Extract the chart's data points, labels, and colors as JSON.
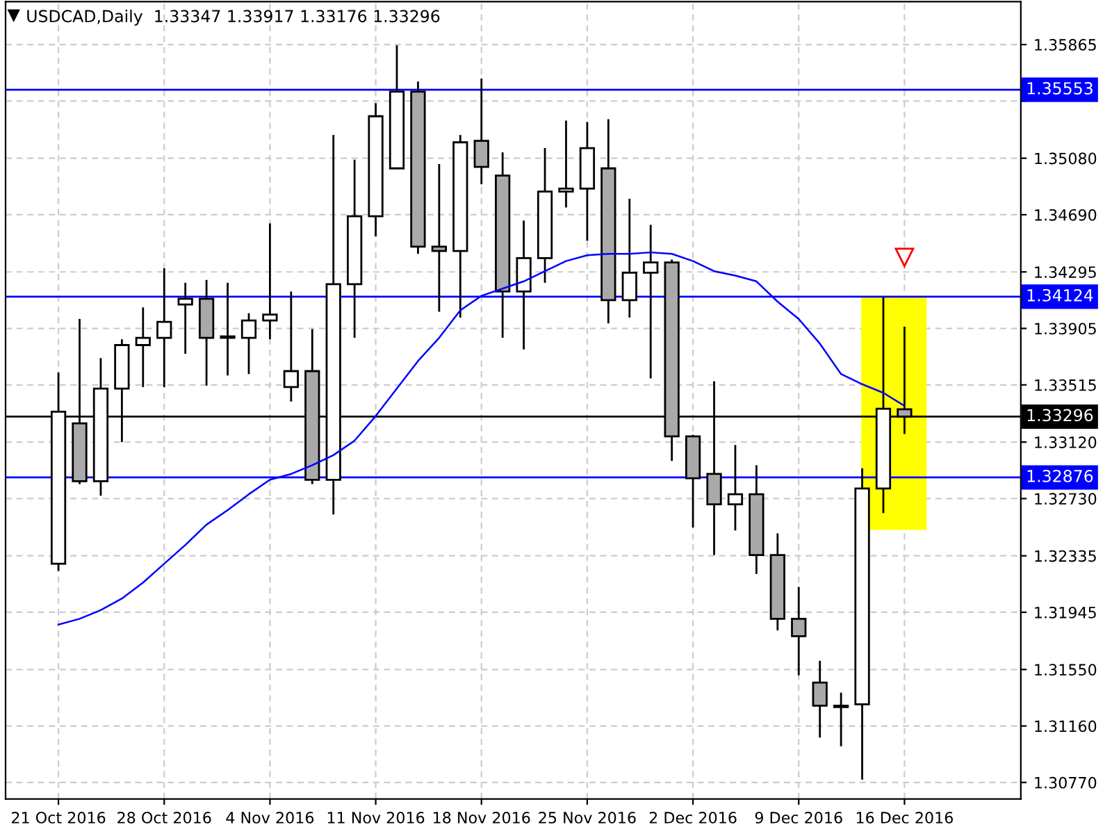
{
  "chart_data": {
    "type": "candlestick",
    "title": "USDCAD,Daily  1.33347 1.33917 1.33176 1.33296",
    "categories": [
      "21 Oct 2016",
      null,
      null,
      null,
      null,
      "28 Oct 2016",
      null,
      null,
      null,
      null,
      "4 Nov 2016",
      null,
      null,
      null,
      null,
      "11 Nov 2016",
      null,
      null,
      null,
      null,
      "18 Nov 2016",
      null,
      null,
      null,
      null,
      "25 Nov 2016",
      null,
      null,
      null,
      null,
      "2 Dec 2016",
      null,
      null,
      null,
      null,
      "9 Dec 2016",
      null,
      null,
      null,
      null,
      "16 Dec 2016",
      null,
      null,
      null,
      null,
      null
    ],
    "ohlc": [
      [
        1.3228,
        1.336,
        1.3223,
        1.3333
      ],
      [
        1.3325,
        1.3397,
        1.3283,
        1.3285
      ],
      [
        1.3285,
        1.337,
        1.3275,
        1.3349
      ],
      [
        1.3349,
        1.3383,
        1.3312,
        1.3379
      ],
      [
        1.3379,
        1.3405,
        1.335,
        1.3384
      ],
      [
        1.3384,
        1.3432,
        1.335,
        1.3395
      ],
      [
        1.3407,
        1.3422,
        1.3373,
        1.3411
      ],
      [
        1.3411,
        1.3424,
        1.3351,
        1.3384
      ],
      [
        1.3385,
        1.3422,
        1.3358,
        1.3384
      ],
      [
        1.3384,
        1.3401,
        1.3359,
        1.3396
      ],
      [
        1.3396,
        1.3463,
        1.3383,
        1.34
      ],
      [
        1.335,
        1.3416,
        1.334,
        1.3361
      ],
      [
        1.3361,
        1.339,
        1.3283,
        1.3286
      ],
      [
        1.3286,
        1.3524,
        1.3262,
        1.3421
      ],
      [
        1.3421,
        1.3507,
        1.3384,
        1.3468
      ],
      [
        1.3468,
        1.3546,
        1.3454,
        1.3537
      ],
      [
        1.3501,
        1.3586,
        1.3501,
        1.3554
      ],
      [
        1.3554,
        1.3561,
        1.3442,
        1.3447
      ],
      [
        1.3447,
        1.3504,
        1.3402,
        1.3444
      ],
      [
        1.3444,
        1.3524,
        1.3398,
        1.3519
      ],
      [
        1.352,
        1.3563,
        1.349,
        1.3502
      ],
      [
        1.3496,
        1.3512,
        1.3384,
        1.3416
      ],
      [
        1.3416,
        1.3465,
        1.3376,
        1.3439
      ],
      [
        1.3439,
        1.3515,
        1.3422,
        1.3485
      ],
      [
        1.3485,
        1.3534,
        1.3474,
        1.3487
      ],
      [
        1.3487,
        1.3533,
        1.3451,
        1.3515
      ],
      [
        1.3501,
        1.3535,
        1.3394,
        1.341
      ],
      [
        1.341,
        1.348,
        1.3398,
        1.3429
      ],
      [
        1.3429,
        1.3462,
        1.3356,
        1.3436
      ],
      [
        1.3436,
        1.3438,
        1.3299,
        1.3316
      ],
      [
        1.3316,
        1.3317,
        1.3253,
        1.3287
      ],
      [
        1.329,
        1.3354,
        1.3234,
        1.3269
      ],
      [
        1.3269,
        1.331,
        1.3251,
        1.3276
      ],
      [
        1.3276,
        1.3296,
        1.3221,
        1.3234
      ],
      [
        1.3234,
        1.3249,
        1.3182,
        1.319
      ],
      [
        1.319,
        1.3212,
        1.3151,
        1.3178
      ],
      [
        1.3146,
        1.3161,
        1.3108,
        1.313
      ],
      [
        1.313,
        1.3139,
        1.3102,
        1.3129
      ],
      [
        1.3131,
        1.3294,
        1.3079,
        1.328
      ],
      [
        1.328,
        1.3412,
        1.3263,
        1.3335
      ],
      [
        1.33347,
        1.33917,
        1.33176,
        1.33296
      ],
      null,
      null,
      null,
      null,
      null
    ],
    "series": [
      {
        "type": "line",
        "color": "#0000ff",
        "values": [
          1.3186,
          1.319,
          1.3196,
          1.3204,
          1.3215,
          1.3228,
          1.3241,
          1.3255,
          1.3265,
          1.3276,
          1.3286,
          1.329,
          1.3296,
          1.3303,
          1.3313,
          1.333,
          1.3349,
          1.3368,
          1.3384,
          1.3403,
          1.3413,
          1.3418,
          1.3423,
          1.343,
          1.3437,
          1.3441,
          1.3442,
          1.3442,
          1.3443,
          1.3442,
          1.3437,
          1.343,
          1.3427,
          1.3423,
          1.3409,
          1.3397,
          1.338,
          1.3359,
          1.3352,
          1.3346,
          1.3337,
          null,
          null,
          null,
          null,
          null
        ]
      }
    ],
    "ylim": [
      1.30656,
      1.36161
    ],
    "yticks": [
      1.35865,
      {
        "value": 1.35475,
        "label": null
      },
      {
        "value": 1.3508,
        "label": "1.35080"
      },
      {
        "value": 1.3469,
        "label": "1.34690"
      },
      1.34295,
      1.33905,
      1.33515,
      {
        "value": 1.3312,
        "label": "1.33120"
      },
      {
        "value": 1.3273,
        "label": "1.32730"
      },
      1.32335,
      1.31945,
      {
        "value": 1.3155,
        "label": "1.31550"
      },
      {
        "value": 1.3116,
        "label": "1.31160"
      },
      {
        "value": 1.3077,
        "label": "1.30770"
      }
    ],
    "ref_lines": [
      {
        "axis": "y",
        "value": 1.35553,
        "label": "1.35553",
        "color": "#0000ff"
      },
      {
        "axis": "y",
        "value": 1.34124,
        "label": "1.34124",
        "color": "#0000ff"
      },
      {
        "axis": "y",
        "value": 1.32876,
        "label": "1.32876",
        "color": "#0000ff"
      },
      {
        "axis": "y",
        "value": 1.33296,
        "label": "1.33296",
        "color": "#000000"
      }
    ],
    "grid": true,
    "marker": "none",
    "line_style": "solid"
  }
}
